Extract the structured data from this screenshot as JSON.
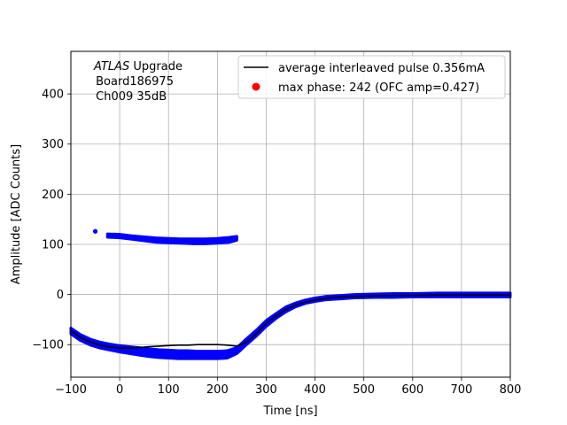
{
  "chart_data": {
    "type": "scatter",
    "xlabel": "Time [ns]",
    "ylabel": "Amplitude [ADC Counts]",
    "xlim": [
      -100,
      800
    ],
    "ylim": [
      -165,
      485
    ],
    "x_ticks": [
      -100,
      0,
      100,
      200,
      300,
      400,
      500,
      600,
      700,
      800
    ],
    "y_ticks": [
      -100,
      0,
      100,
      200,
      300,
      400
    ],
    "x_tick_labels": [
      "−100",
      "0",
      "100",
      "200",
      "300",
      "400",
      "500",
      "600",
      "700",
      "800"
    ],
    "y_tick_labels": [
      "−100",
      "0",
      "100",
      "200",
      "300",
      "400"
    ],
    "grid": true,
    "legend_position": "top-right",
    "annotation": {
      "italic_part": "ATLAS",
      "rest_line1": " Upgrade",
      "line2": " Board186975",
      "line3": " Ch009 35dB"
    },
    "series": [
      {
        "name": "average interleaved pulse 0.356mA",
        "kind": "line",
        "color": "#000000",
        "points": [
          [
            -100,
            -72
          ],
          [
            -80,
            -86
          ],
          [
            -60,
            -95
          ],
          [
            -40,
            -101
          ],
          [
            -20,
            -105
          ],
          [
            0,
            -107
          ],
          [
            20,
            -107
          ],
          [
            40,
            -106
          ],
          [
            60,
            -104
          ],
          [
            80,
            -103
          ],
          [
            100,
            -102
          ],
          [
            120,
            -101
          ],
          [
            140,
            -101
          ],
          [
            160,
            -100
          ],
          [
            180,
            -100
          ],
          [
            200,
            -100
          ],
          [
            220,
            -101
          ],
          [
            240,
            -103
          ],
          [
            260,
            -95
          ],
          [
            280,
            -78
          ],
          [
            300,
            -58
          ],
          [
            320,
            -43
          ],
          [
            340,
            -30
          ],
          [
            360,
            -21
          ],
          [
            380,
            -15
          ],
          [
            400,
            -11
          ],
          [
            420,
            -8
          ],
          [
            450,
            -5
          ],
          [
            480,
            -4
          ],
          [
            520,
            -3
          ],
          [
            560,
            -2
          ],
          [
            600,
            -2
          ],
          [
            650,
            -1
          ],
          [
            700,
            -1
          ],
          [
            750,
            -1
          ],
          [
            800,
            -1
          ]
        ]
      },
      {
        "name": "",
        "kind": "band",
        "color": "#0000ff",
        "upper": [
          [
            -100,
            -67
          ],
          [
            -80,
            -80
          ],
          [
            -60,
            -89
          ],
          [
            -40,
            -95
          ],
          [
            -20,
            -99
          ],
          [
            0,
            -102
          ],
          [
            20,
            -104
          ],
          [
            40,
            -106
          ],
          [
            60,
            -108
          ],
          [
            80,
            -110
          ],
          [
            100,
            -111
          ],
          [
            120,
            -112
          ],
          [
            140,
            -112
          ],
          [
            160,
            -113
          ],
          [
            180,
            -113
          ],
          [
            200,
            -113
          ],
          [
            220,
            -112
          ],
          [
            240,
            -106
          ],
          [
            260,
            -88
          ],
          [
            280,
            -71
          ],
          [
            300,
            -52
          ],
          [
            320,
            -38
          ],
          [
            340,
            -25
          ],
          [
            360,
            -17
          ],
          [
            380,
            -11
          ],
          [
            400,
            -7
          ],
          [
            420,
            -4
          ],
          [
            450,
            -2
          ],
          [
            480,
            0
          ],
          [
            520,
            1
          ],
          [
            560,
            2
          ],
          [
            600,
            2
          ],
          [
            650,
            3
          ],
          [
            700,
            3
          ],
          [
            750,
            3
          ],
          [
            800,
            3
          ]
        ],
        "lower": [
          [
            -100,
            -79
          ],
          [
            -80,
            -92
          ],
          [
            -60,
            -101
          ],
          [
            -40,
            -107
          ],
          [
            -20,
            -111
          ],
          [
            0,
            -115
          ],
          [
            20,
            -118
          ],
          [
            40,
            -121
          ],
          [
            60,
            -124
          ],
          [
            80,
            -126
          ],
          [
            100,
            -127
          ],
          [
            120,
            -128
          ],
          [
            140,
            -128
          ],
          [
            160,
            -128
          ],
          [
            180,
            -128
          ],
          [
            200,
            -128
          ],
          [
            220,
            -127
          ],
          [
            240,
            -118
          ],
          [
            260,
            -100
          ],
          [
            280,
            -83
          ],
          [
            300,
            -64
          ],
          [
            320,
            -48
          ],
          [
            340,
            -35
          ],
          [
            360,
            -25
          ],
          [
            380,
            -18
          ],
          [
            400,
            -14
          ],
          [
            420,
            -11
          ],
          [
            450,
            -9
          ],
          [
            480,
            -7
          ],
          [
            520,
            -6
          ],
          [
            560,
            -6
          ],
          [
            600,
            -5
          ],
          [
            650,
            -5
          ],
          [
            700,
            -5
          ],
          [
            750,
            -5
          ],
          [
            800,
            -5
          ]
        ]
      },
      {
        "name": "",
        "kind": "band",
        "color": "#0000ff",
        "upper": [
          [
            -25,
            121
          ],
          [
            0,
            120
          ],
          [
            25,
            117
          ],
          [
            50,
            115
          ],
          [
            75,
            113
          ],
          [
            100,
            112
          ],
          [
            125,
            111
          ],
          [
            150,
            111
          ],
          [
            175,
            111
          ],
          [
            200,
            112
          ],
          [
            225,
            114
          ],
          [
            240,
            116
          ]
        ],
        "lower": [
          [
            -25,
            114
          ],
          [
            0,
            113
          ],
          [
            25,
            110
          ],
          [
            50,
            107
          ],
          [
            75,
            104
          ],
          [
            100,
            103
          ],
          [
            125,
            102
          ],
          [
            150,
            101
          ],
          [
            175,
            101
          ],
          [
            200,
            102
          ],
          [
            225,
            104
          ],
          [
            240,
            108
          ]
        ]
      },
      {
        "name": "",
        "kind": "points",
        "color": "#0000ff",
        "points": [
          [
            -50,
            126
          ]
        ]
      },
      {
        "name": "max phase: 242 (OFC amp=0.427)",
        "kind": "legend-marker",
        "color": "#ff0000"
      }
    ]
  }
}
